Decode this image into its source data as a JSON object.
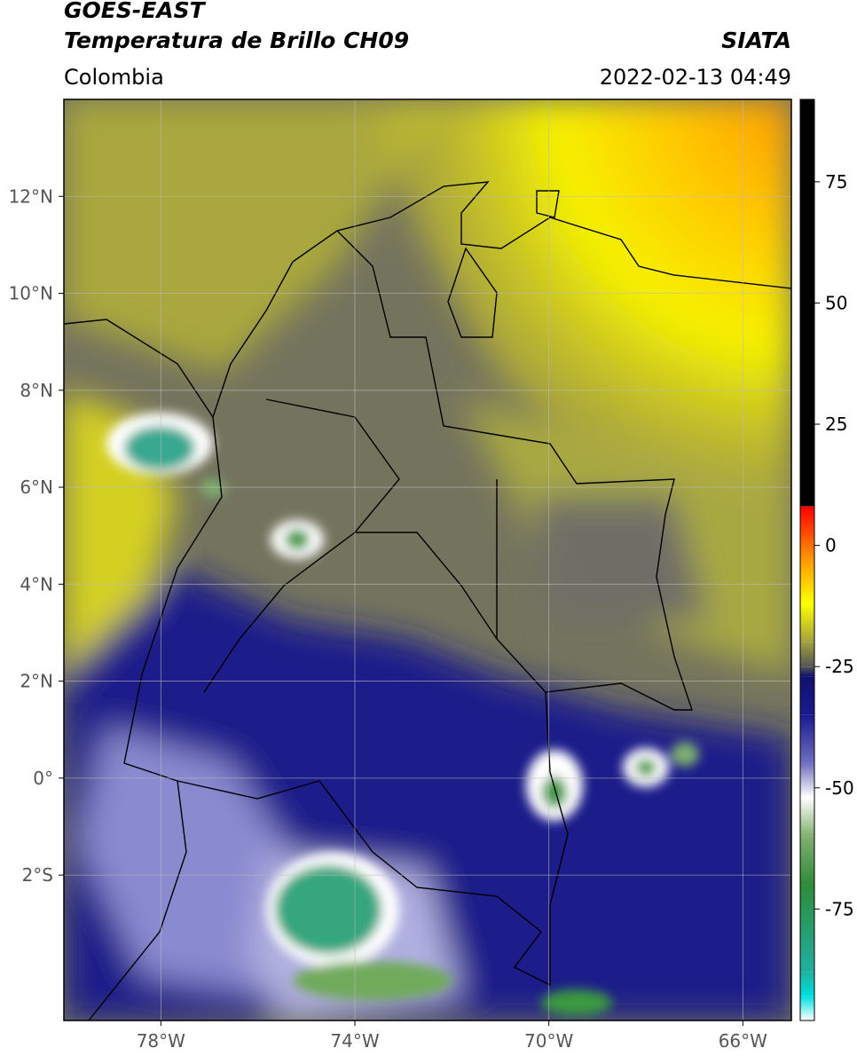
{
  "header": {
    "title": "GOES-EAST",
    "subtitle": "Temperatura de Brillo CH09",
    "source": "SIATA",
    "region": "Colombia",
    "timestamp": "2022-02-13 04:49"
  },
  "map": {
    "xlim": [
      -80,
      -65
    ],
    "ylim": [
      -5,
      14
    ],
    "grid": true,
    "xticks": [
      {
        "value": -78,
        "label": "78°W"
      },
      {
        "value": -74,
        "label": "74°W"
      },
      {
        "value": -70,
        "label": "70°W"
      },
      {
        "value": -66,
        "label": "66°W"
      }
    ],
    "yticks": [
      {
        "value": 12,
        "label": "12°N"
      },
      {
        "value": 10,
        "label": "10°N"
      },
      {
        "value": 8,
        "label": "8°N"
      },
      {
        "value": 6,
        "label": "6°N"
      },
      {
        "value": 4,
        "label": "4°N"
      },
      {
        "value": 2,
        "label": "2°N"
      },
      {
        "value": 0,
        "label": "0°"
      },
      {
        "value": -2,
        "label": "2°S"
      }
    ]
  },
  "colorbar": {
    "range": [
      -98,
      92
    ],
    "ticks": [
      75,
      50,
      25,
      0,
      -25,
      -50,
      -75
    ],
    "stops": [
      {
        "value": -98,
        "color": "#ffffff"
      },
      {
        "value": -93,
        "color": "#00e0e0"
      },
      {
        "value": -88,
        "color": "#20b0a0"
      },
      {
        "value": -70,
        "color": "#2e8b3a"
      },
      {
        "value": -60,
        "color": "#80b070"
      },
      {
        "value": -52,
        "color": "#ffffff"
      },
      {
        "value": -45,
        "color": "#7070c0"
      },
      {
        "value": -35,
        "color": "#1a1a90"
      },
      {
        "value": -27,
        "color": "#101070"
      },
      {
        "value": -25,
        "color": "#555555"
      },
      {
        "value": -20,
        "color": "#a0a040"
      },
      {
        "value": -12,
        "color": "#ffff00"
      },
      {
        "value": -3,
        "color": "#ff9900"
      },
      {
        "value": 8,
        "color": "#ff0000"
      },
      {
        "value": 8.1,
        "color": "#000000"
      },
      {
        "value": 92,
        "color": "#000000"
      }
    ]
  }
}
